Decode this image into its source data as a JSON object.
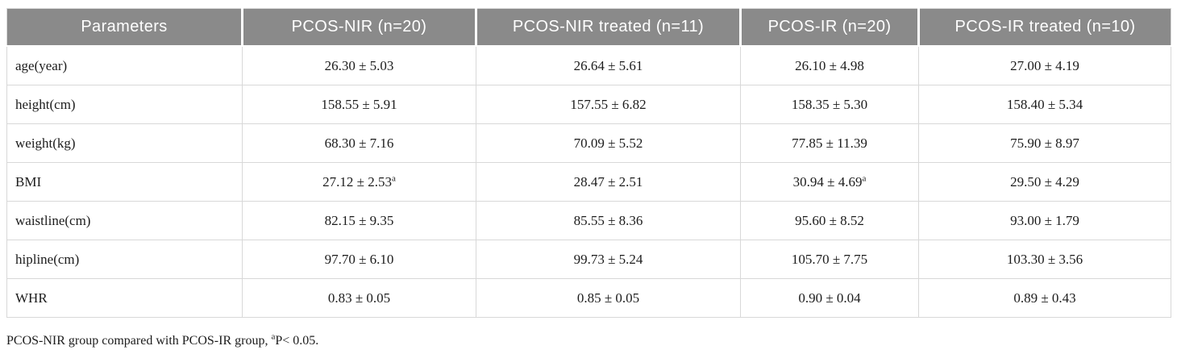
{
  "table": {
    "columns": [
      "Parameters",
      "PCOS-NIR (n=20)",
      "PCOS-NIR treated (n=11)",
      "PCOS-IR (n=20)",
      "PCOS-IR treated (n=10)"
    ],
    "rows": [
      {
        "param": "age(year)",
        "values": [
          "26.30 ± 5.03",
          "26.64 ± 5.61",
          "26.10 ± 4.98",
          "27.00 ± 4.19"
        ]
      },
      {
        "param": "height(cm)",
        "values": [
          "158.55 ± 5.91",
          "157.55 ± 6.82",
          "158.35 ± 5.30",
          "158.40 ± 5.34"
        ]
      },
      {
        "param": "weight(kg)",
        "values": [
          "68.30 ± 7.16",
          "70.09 ± 5.52",
          "77.85 ± 11.39",
          "75.90 ± 8.97"
        ]
      },
      {
        "param": "BMI",
        "values": [
          {
            "text": "27.12 ± 2.53",
            "sup": "a"
          },
          "28.47 ± 2.51",
          {
            "text": "30.94 ± 4.69",
            "sup": "a"
          },
          "29.50 ± 4.29"
        ]
      },
      {
        "param": "waistline(cm)",
        "values": [
          "82.15 ± 9.35",
          "85.55 ± 8.36",
          "95.60 ± 8.52",
          "93.00 ± 1.79"
        ]
      },
      {
        "param": "hipline(cm)",
        "values": [
          "97.70 ± 6.10",
          "99.73 ± 5.24",
          "105.70 ± 7.75",
          "103.30 ± 3.56"
        ]
      },
      {
        "param": "WHR",
        "values": [
          "0.83 ± 0.05",
          "0.85 ± 0.05",
          "0.90 ± 0.04",
          "0.89 ± 0.43"
        ]
      }
    ]
  },
  "footnote": {
    "prefix": "PCOS-NIR group compared with PCOS-IR group, ",
    "sup": "a",
    "suffix": "P< 0.05."
  },
  "colors": {
    "header_bg": "#8a8a8a",
    "header_text": "#ffffff",
    "body_text": "#1c1c1c",
    "grid_line": "#d8d8d8"
  }
}
